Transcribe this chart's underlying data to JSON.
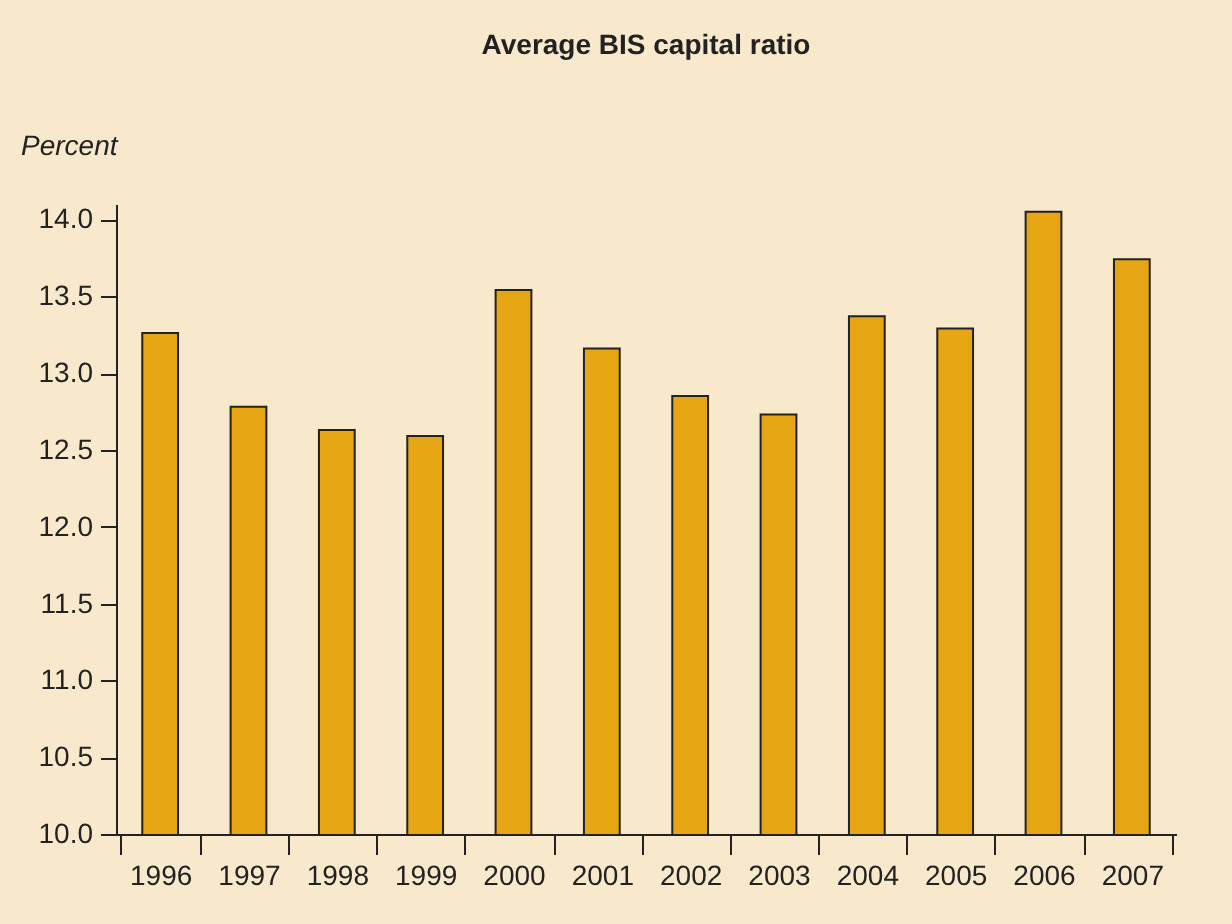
{
  "chart_data": {
    "type": "bar",
    "title": "Average BIS capital ratio",
    "ylabel": "Percent",
    "categories": [
      "1996",
      "1997",
      "1998",
      "1999",
      "2000",
      "2001",
      "2002",
      "2003",
      "2004",
      "2005",
      "2006",
      "2007"
    ],
    "values": [
      13.26,
      12.78,
      12.63,
      12.59,
      13.54,
      13.16,
      12.85,
      12.73,
      13.37,
      13.29,
      14.05,
      13.74
    ],
    "color": "#e6a614",
    "ylim": [
      10,
      14.1
    ],
    "yticks": [
      {
        "value": 10,
        "label": "10.0"
      },
      {
        "value": 10.5,
        "label": "10.5"
      },
      {
        "value": 11,
        "label": "11.0"
      },
      {
        "value": 11.5,
        "label": "11.5"
      },
      {
        "value": 12,
        "label": "12.0"
      },
      {
        "value": 12.5,
        "label": "12.5"
      },
      {
        "value": 13,
        "label": "13.0"
      },
      {
        "value": 13.5,
        "label": "13.5"
      },
      {
        "value": 14,
        "label": "14.0"
      }
    ],
    "grid": false
  }
}
